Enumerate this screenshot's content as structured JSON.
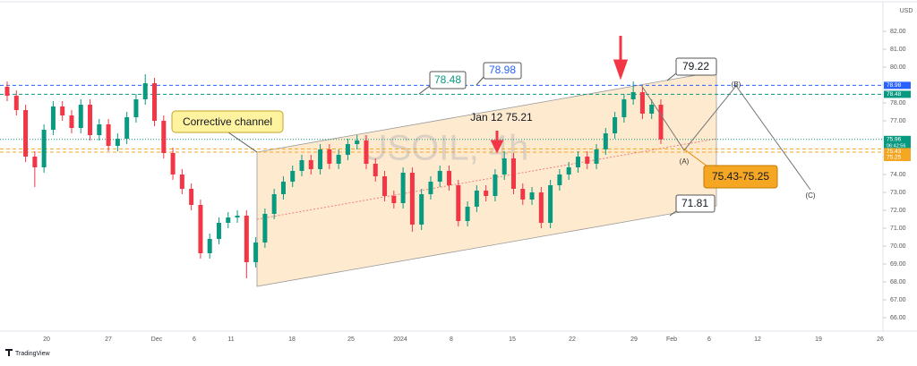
{
  "chart_data": {
    "type": "candlestick",
    "title": "USOIL, 4h",
    "currency": "USD",
    "brand": "TradingView",
    "countdown": "06:42:56",
    "xticks": [
      "20",
      "27",
      "Dec",
      "6",
      "11",
      "18",
      "25",
      "2024",
      "8",
      "15",
      "22",
      "29",
      "Feb",
      "6",
      "12",
      "19",
      "26"
    ],
    "ylim": [
      66,
      82
    ],
    "yticks": [
      {
        "value": 82,
        "label": "82.00"
      },
      {
        "value": 81,
        "label": "81.00"
      },
      {
        "value": 80,
        "label": "80.00"
      },
      {
        "value": 79,
        "label": "79.00"
      },
      {
        "value": 78,
        "label": "78.00"
      },
      {
        "value": 77,
        "label": "77.00"
      },
      {
        "value": 76,
        "label": "76.00"
      },
      {
        "value": 75,
        "label": "75.00"
      },
      {
        "value": 74,
        "label": "74.00"
      },
      {
        "value": 73,
        "label": "73.00"
      },
      {
        "value": 72,
        "label": "72.00"
      },
      {
        "value": 71,
        "label": "71.00"
      },
      {
        "value": 70,
        "label": "70.00"
      },
      {
        "value": 69,
        "label": "69.00"
      },
      {
        "value": 68,
        "label": "68.00"
      },
      {
        "value": 67,
        "label": "67.00"
      },
      {
        "value": 66,
        "label": "66.00"
      }
    ],
    "up_color": "#089981",
    "down_color": "#f23645",
    "open": [
      78.9,
      78.4,
      77.6,
      75.0,
      74.4,
      76.5,
      77.8,
      77.3,
      76.6,
      77.9,
      76.2,
      76.8,
      75.6,
      76.0,
      77.2,
      78.2,
      79.1,
      77.0,
      75.2,
      74.0,
      73.2,
      72.3,
      69.6,
      70.4,
      71.3,
      71.6,
      71.7,
      69.1,
      70.2,
      71.8,
      72.9,
      73.6,
      74.2,
      74.8,
      74.3,
      75.4,
      74.6,
      75.1,
      75.7,
      75.9,
      74.6,
      73.9,
      72.8,
      72.4,
      74.1,
      71.2,
      72.9,
      73.6,
      74.2,
      73.4,
      71.4,
      72.2,
      73.1,
      72.8,
      74.0,
      74.9,
      73.2,
      72.6,
      73.0,
      71.3,
      73.4,
      74.0,
      74.4,
      75.0,
      74.6,
      75.4,
      76.3,
      77.2,
      78.2,
      78.6,
      77.4,
      77.9
    ],
    "high": [
      79.2,
      78.7,
      77.9,
      75.3,
      76.8,
      78.1,
      78.1,
      77.6,
      78.2,
      78.2,
      77.1,
      77.1,
      76.3,
      77.5,
      78.5,
      79.6,
      79.4,
      77.3,
      75.5,
      74.3,
      73.5,
      72.6,
      70.7,
      71.6,
      71.9,
      72.0,
      72.0,
      70.5,
      72.1,
      73.2,
      73.9,
      74.5,
      75.1,
      75.1,
      75.7,
      75.7,
      75.4,
      76.0,
      76.2,
      76.2,
      74.9,
      74.2,
      73.1,
      74.4,
      74.4,
      73.2,
      73.9,
      74.5,
      74.5,
      73.7,
      72.5,
      73.4,
      73.4,
      74.3,
      75.3,
      75.2,
      73.5,
      73.3,
      73.3,
      73.7,
      74.3,
      74.7,
      75.3,
      75.3,
      75.7,
      76.6,
      77.5,
      78.5,
      79.2,
      78.9,
      78.2,
      78.2
    ],
    "low": [
      78.1,
      77.3,
      74.7,
      73.3,
      74.1,
      76.2,
      77.0,
      76.3,
      76.3,
      75.9,
      75.9,
      75.3,
      75.3,
      75.7,
      76.9,
      77.9,
      76.7,
      74.9,
      73.7,
      72.9,
      72.0,
      69.3,
      69.3,
      70.1,
      71.0,
      71.3,
      68.2,
      68.8,
      69.9,
      71.5,
      72.6,
      73.3,
      73.9,
      74.0,
      74.0,
      74.3,
      74.3,
      74.8,
      75.4,
      74.3,
      73.6,
      72.5,
      72.1,
      72.1,
      70.8,
      70.9,
      72.6,
      73.3,
      73.1,
      71.1,
      71.1,
      71.9,
      72.5,
      72.5,
      73.7,
      72.9,
      72.3,
      72.3,
      71.0,
      71.0,
      73.1,
      73.7,
      74.1,
      74.3,
      74.3,
      75.1,
      76.0,
      76.9,
      77.9,
      77.1,
      77.1,
      75.7
    ],
    "close": [
      78.4,
      77.6,
      75.0,
      74.4,
      76.5,
      77.8,
      77.3,
      76.6,
      77.9,
      76.2,
      76.8,
      75.6,
      76.0,
      77.2,
      78.2,
      79.1,
      77.0,
      75.2,
      74.0,
      73.2,
      72.3,
      69.6,
      70.4,
      71.3,
      71.6,
      71.7,
      69.1,
      70.2,
      71.8,
      72.9,
      73.6,
      74.2,
      74.8,
      74.3,
      75.4,
      74.6,
      75.1,
      75.7,
      75.9,
      74.6,
      73.9,
      72.8,
      72.4,
      74.1,
      71.2,
      72.9,
      73.6,
      74.2,
      73.4,
      71.4,
      72.2,
      73.1,
      72.8,
      74.0,
      74.9,
      73.2,
      72.6,
      73.0,
      71.3,
      73.4,
      74.0,
      74.4,
      75.0,
      74.6,
      75.4,
      76.3,
      77.2,
      78.2,
      78.6,
      77.4,
      77.9,
      75.96
    ],
    "levels": [
      {
        "value": 78.98,
        "label": "78.98",
        "color": "#2962ff"
      },
      {
        "value": 78.48,
        "label": "78.48",
        "color": "#089981"
      },
      {
        "value": 75.43,
        "label": "75.43",
        "color": "#f5a623"
      },
      {
        "value": 75.25,
        "label": "75.25",
        "color": "#f5a623"
      }
    ],
    "last_price": {
      "value": 75.96,
      "label": "75.96"
    },
    "annotations": {
      "channel": "Corrective channel",
      "level_a": "78.48",
      "level_b": "78.98",
      "channel_top": "79.22",
      "channel_bottom": "71.81",
      "jan12": "Jan 12 75.21",
      "zone": "75.43-75.25",
      "wave_a": "(A)",
      "wave_b": "(B)",
      "wave_c": "(C)"
    }
  }
}
